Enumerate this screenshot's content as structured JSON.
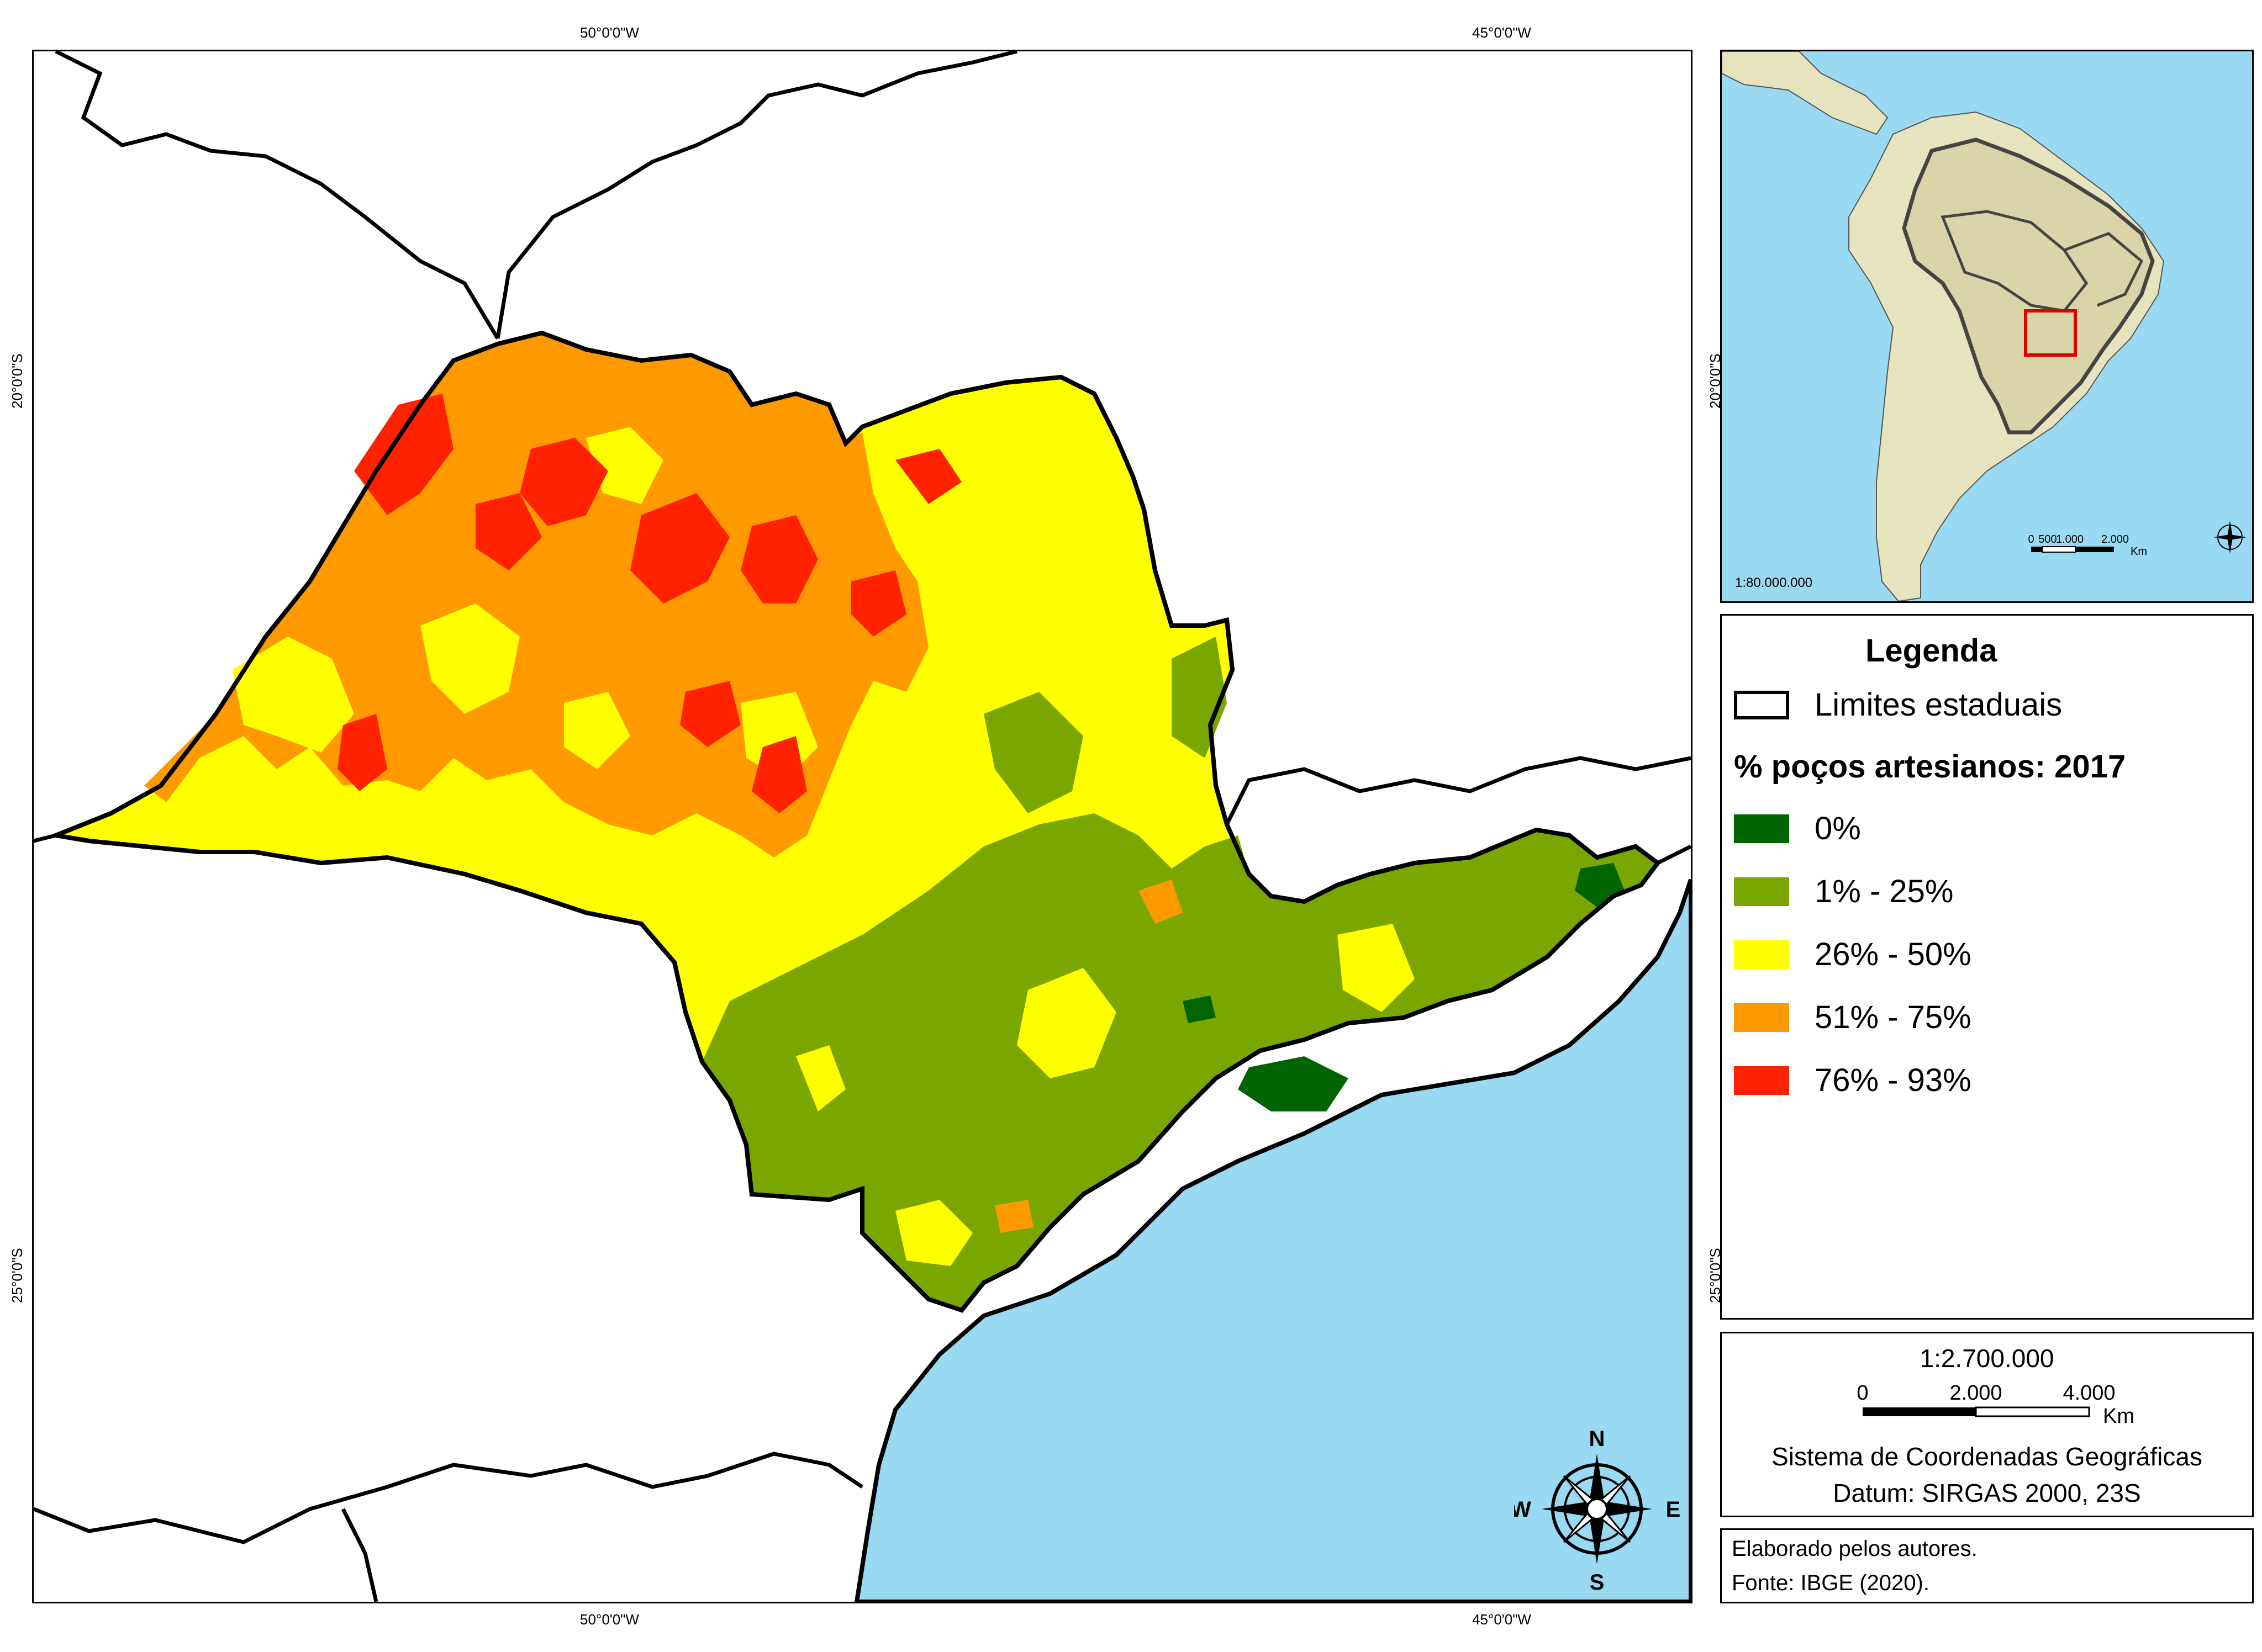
{
  "graticule": {
    "lon_top_left": "50°0'0\"W",
    "lon_top_right": "45°0'0\"W",
    "lon_bottom_left": "50°0'0\"W",
    "lon_bottom_right": "45°0'0\"W",
    "lat_left_upper": "20°0'0\"S",
    "lat_left_lower": "25°0'0\"S",
    "lat_right_upper": "20°0'0\"S",
    "lat_right_lower": "25°0'0\"S"
  },
  "north_arrow": {
    "n": "N",
    "s": "S",
    "e": "E",
    "w": "W"
  },
  "inset": {
    "scale_text": "1:80.000.000",
    "scalebar_ticks": [
      "0",
      "500",
      "1.000",
      "2.000"
    ],
    "scalebar_unit": "Km"
  },
  "legend": {
    "title": "Legenda",
    "boundary_label": "Limites estaduais",
    "subtitle": "% poços artesianos: 2017",
    "classes": [
      {
        "label": "0%",
        "color": "#006400"
      },
      {
        "label": "1% - 25%",
        "color": "#7aa600"
      },
      {
        "label": "26% - 50%",
        "color": "#ffff00"
      },
      {
        "label": "51% - 75%",
        "color": "#ff9900"
      },
      {
        "label": "76% - 93%",
        "color": "#ff2200"
      }
    ]
  },
  "scale": {
    "ratio": "1:2.700.000",
    "ticks": [
      "0",
      "2.000",
      "4.000"
    ],
    "unit": "Km",
    "crs": "Sistema de Coordenadas Geográficas",
    "datum": "Datum: SIRGAS 2000, 23S"
  },
  "credits": {
    "line1": "Elaborado pelos autores.",
    "line2": "Fonte: IBGE (2020)."
  },
  "colors": {
    "ocean": "#99daf2",
    "land_inset": "#e6e3bf",
    "brazil_inset": "#d9d5a8",
    "highlight": "#e00000"
  }
}
